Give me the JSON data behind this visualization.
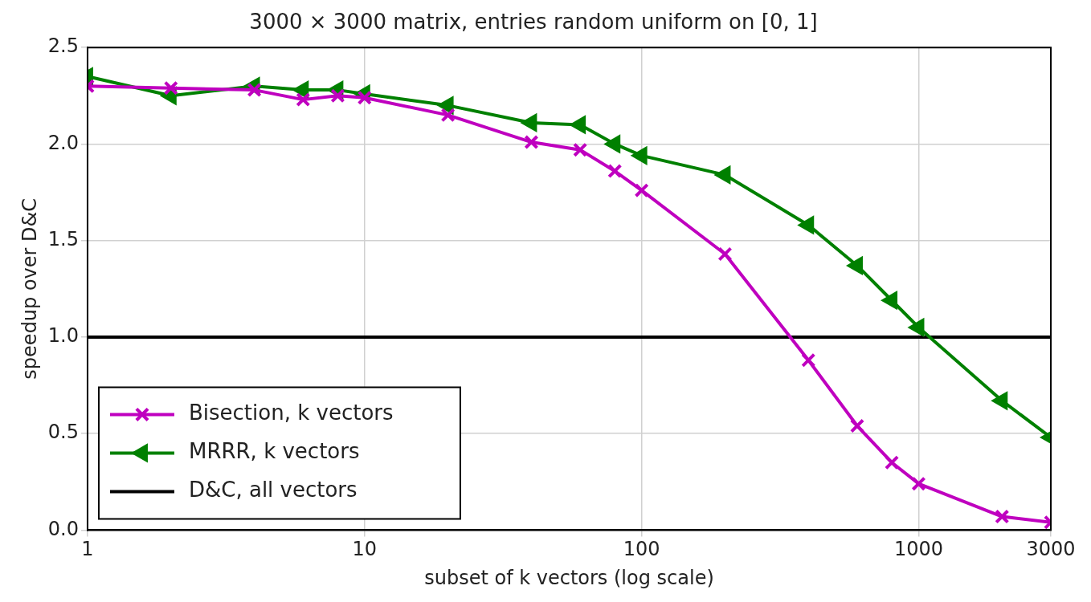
{
  "chart_data": {
    "type": "line",
    "title": "3000 × 3000 matrix, entries random uniform on [0, 1]",
    "xlabel": "subset of k vectors (log scale)",
    "ylabel": "speedup over D&C",
    "x": [
      1,
      2,
      4,
      6,
      8,
      10,
      20,
      40,
      60,
      80,
      100,
      200,
      400,
      600,
      800,
      1000,
      2000,
      3000
    ],
    "series": [
      {
        "name": "Bisection, k vectors",
        "color": "#bf00bf",
        "marker": "cross",
        "values": [
          2.3,
          2.29,
          2.28,
          2.23,
          2.25,
          2.24,
          2.15,
          2.01,
          1.97,
          1.86,
          1.76,
          1.43,
          0.88,
          0.54,
          0.35,
          0.24,
          0.07,
          0.04
        ]
      },
      {
        "name": "MRRR, k vectors",
        "color": "#008000",
        "marker": "triangle",
        "values": [
          2.35,
          2.25,
          2.3,
          2.28,
          2.28,
          2.26,
          2.2,
          2.11,
          2.1,
          2.0,
          1.94,
          1.84,
          1.58,
          1.37,
          1.19,
          1.05,
          0.67,
          0.48
        ]
      },
      {
        "name": "D&C, all vectors",
        "color": "#000000",
        "marker": "none",
        "x": [
          1,
          3000
        ],
        "values": [
          1,
          1
        ]
      }
    ],
    "log": "x",
    "xlim": [
      1,
      3000
    ],
    "xticks": [
      1,
      10,
      100,
      1000,
      3000
    ],
    "ylim": [
      0,
      2.5
    ],
    "yticks": [
      {
        "value": 0,
        "label": "0.0"
      },
      0.5,
      {
        "value": 1,
        "label": "1.0"
      },
      1.5,
      {
        "value": 2,
        "label": "2.0"
      },
      2.5
    ],
    "grid": true,
    "legend": "bottom left",
    "line_style": "solid"
  }
}
